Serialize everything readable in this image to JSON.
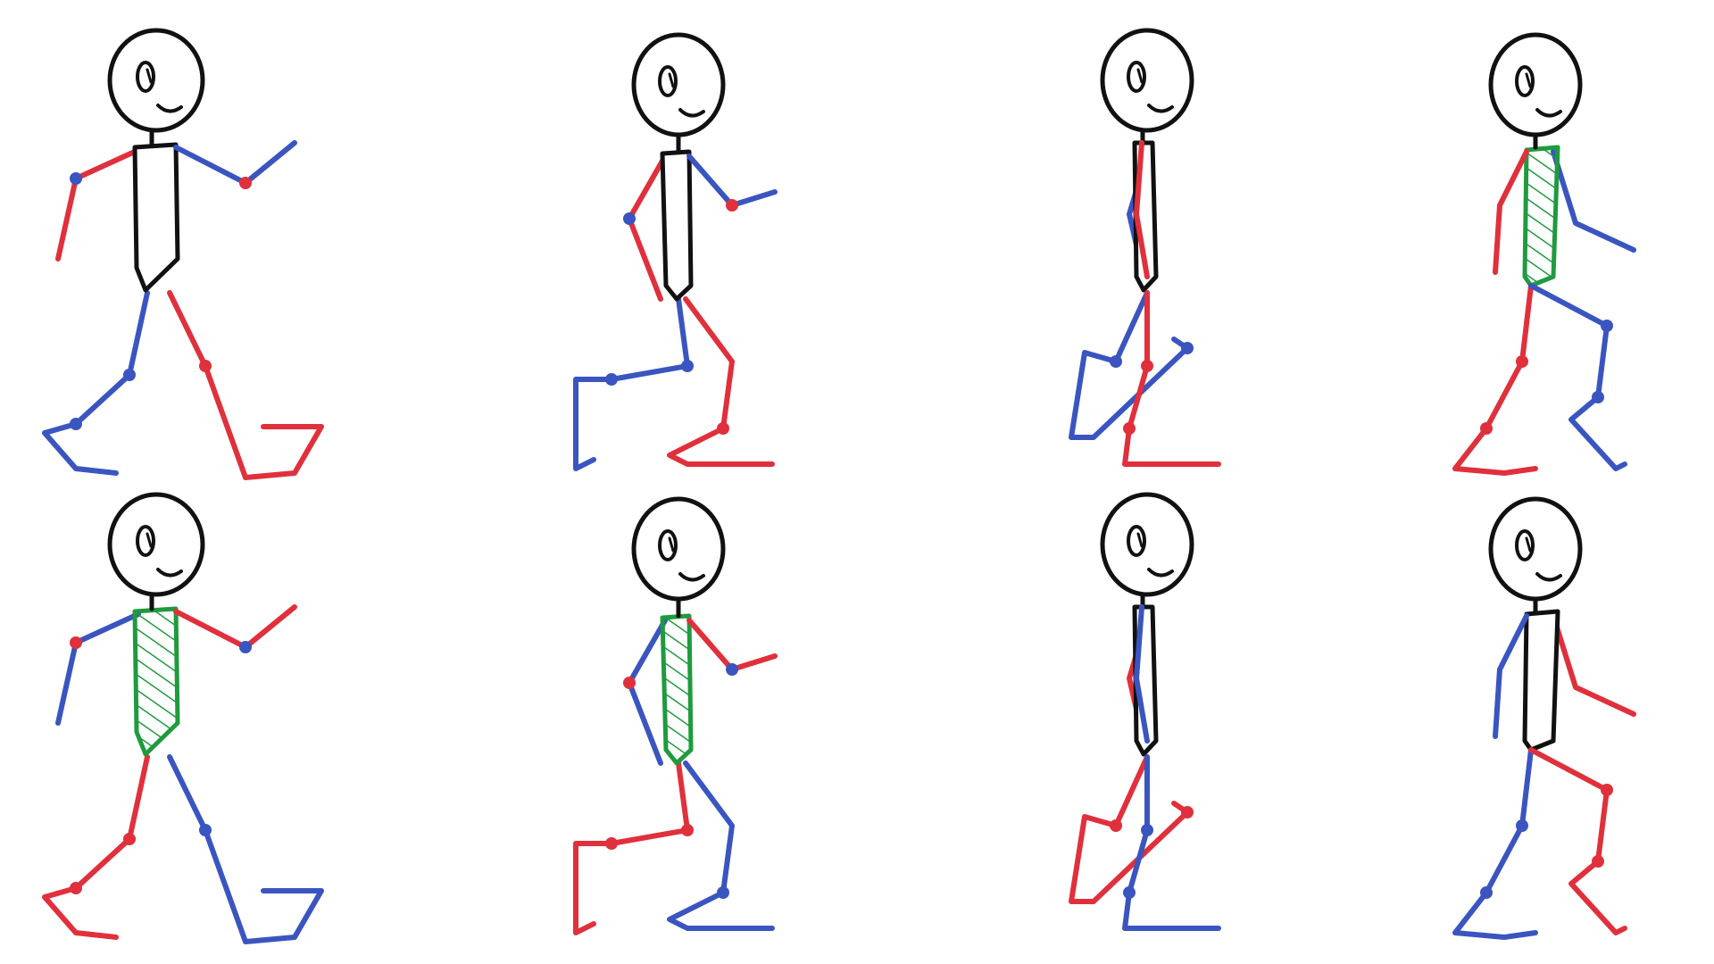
{
  "colors": {
    "ink": "#111111",
    "red": "#e0303c",
    "blue": "#3a55c0",
    "green": "#1f9a3e",
    "background": "#ffffff"
  },
  "figures": [
    {
      "row": 1,
      "frame": 1,
      "pose": "contact",
      "near_arm": "blue",
      "near_leg": "red",
      "torso_shaded": false
    },
    {
      "row": 1,
      "frame": 2,
      "pose": "down",
      "near_arm": "blue",
      "near_leg": "red",
      "torso_shaded": false
    },
    {
      "row": 1,
      "frame": 3,
      "pose": "passing",
      "near_arm": "red",
      "near_leg": "red",
      "torso_shaded": false
    },
    {
      "row": 1,
      "frame": 4,
      "pose": "up",
      "near_arm": "red",
      "near_leg": "blue",
      "torso_shaded": true
    },
    {
      "row": 2,
      "frame": 5,
      "pose": "contact",
      "near_arm": "red",
      "near_leg": "blue",
      "torso_shaded": true
    },
    {
      "row": 2,
      "frame": 6,
      "pose": "down",
      "near_arm": "red",
      "near_leg": "blue",
      "torso_shaded": true
    },
    {
      "row": 2,
      "frame": 7,
      "pose": "passing",
      "near_arm": "blue",
      "near_leg": "blue",
      "torso_shaded": false
    },
    {
      "row": 2,
      "frame": 8,
      "pose": "up",
      "near_arm": "blue",
      "near_leg": "red",
      "torso_shaded": false
    }
  ]
}
